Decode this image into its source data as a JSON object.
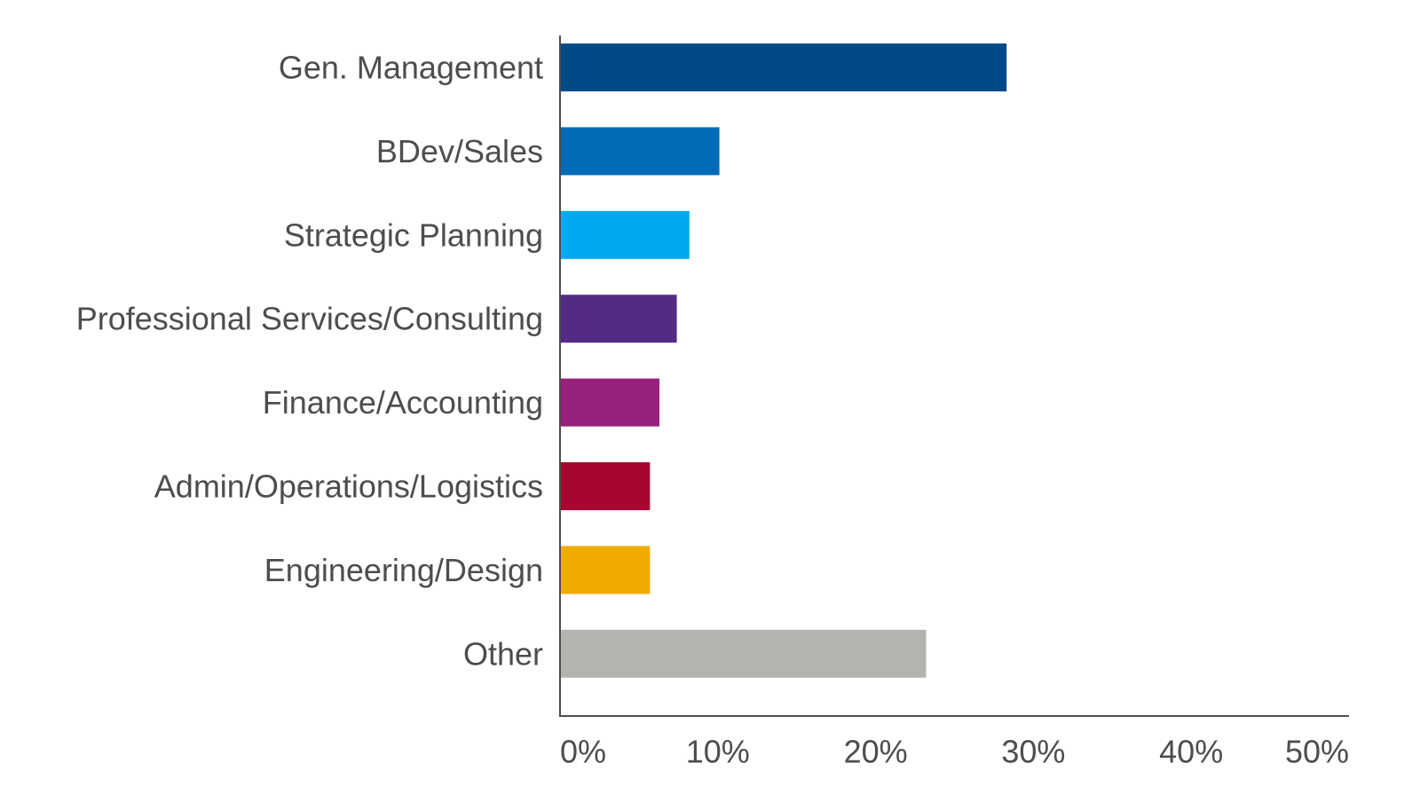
{
  "chart_data": {
    "type": "bar",
    "orientation": "horizontal",
    "categories": [
      "Gen. Management",
      "BDev/Sales",
      "Strategic Planning",
      "Professional Services/Consulting",
      "Finance/Accounting",
      "Admin/Operations/Logistics",
      "Engineering/Design",
      "Other"
    ],
    "values": [
      28.3,
      10.1,
      8.2,
      7.4,
      6.3,
      5.7,
      5.7,
      23.2
    ],
    "colors": [
      "#004a87",
      "#006cb7",
      "#00aaf0",
      "#532a85",
      "#97217b",
      "#a6062f",
      "#f0ab00",
      "#b1b5ad"
    ],
    "xlim": [
      0,
      50
    ],
    "xticks": [
      0,
      10,
      20,
      30,
      40,
      50
    ],
    "xtick_labels": [
      "0%",
      "10%",
      "20%",
      "30%",
      "40%",
      "50%"
    ],
    "title": "",
    "xlabel": "",
    "ylabel": "",
    "grid": false,
    "legend": "none"
  }
}
